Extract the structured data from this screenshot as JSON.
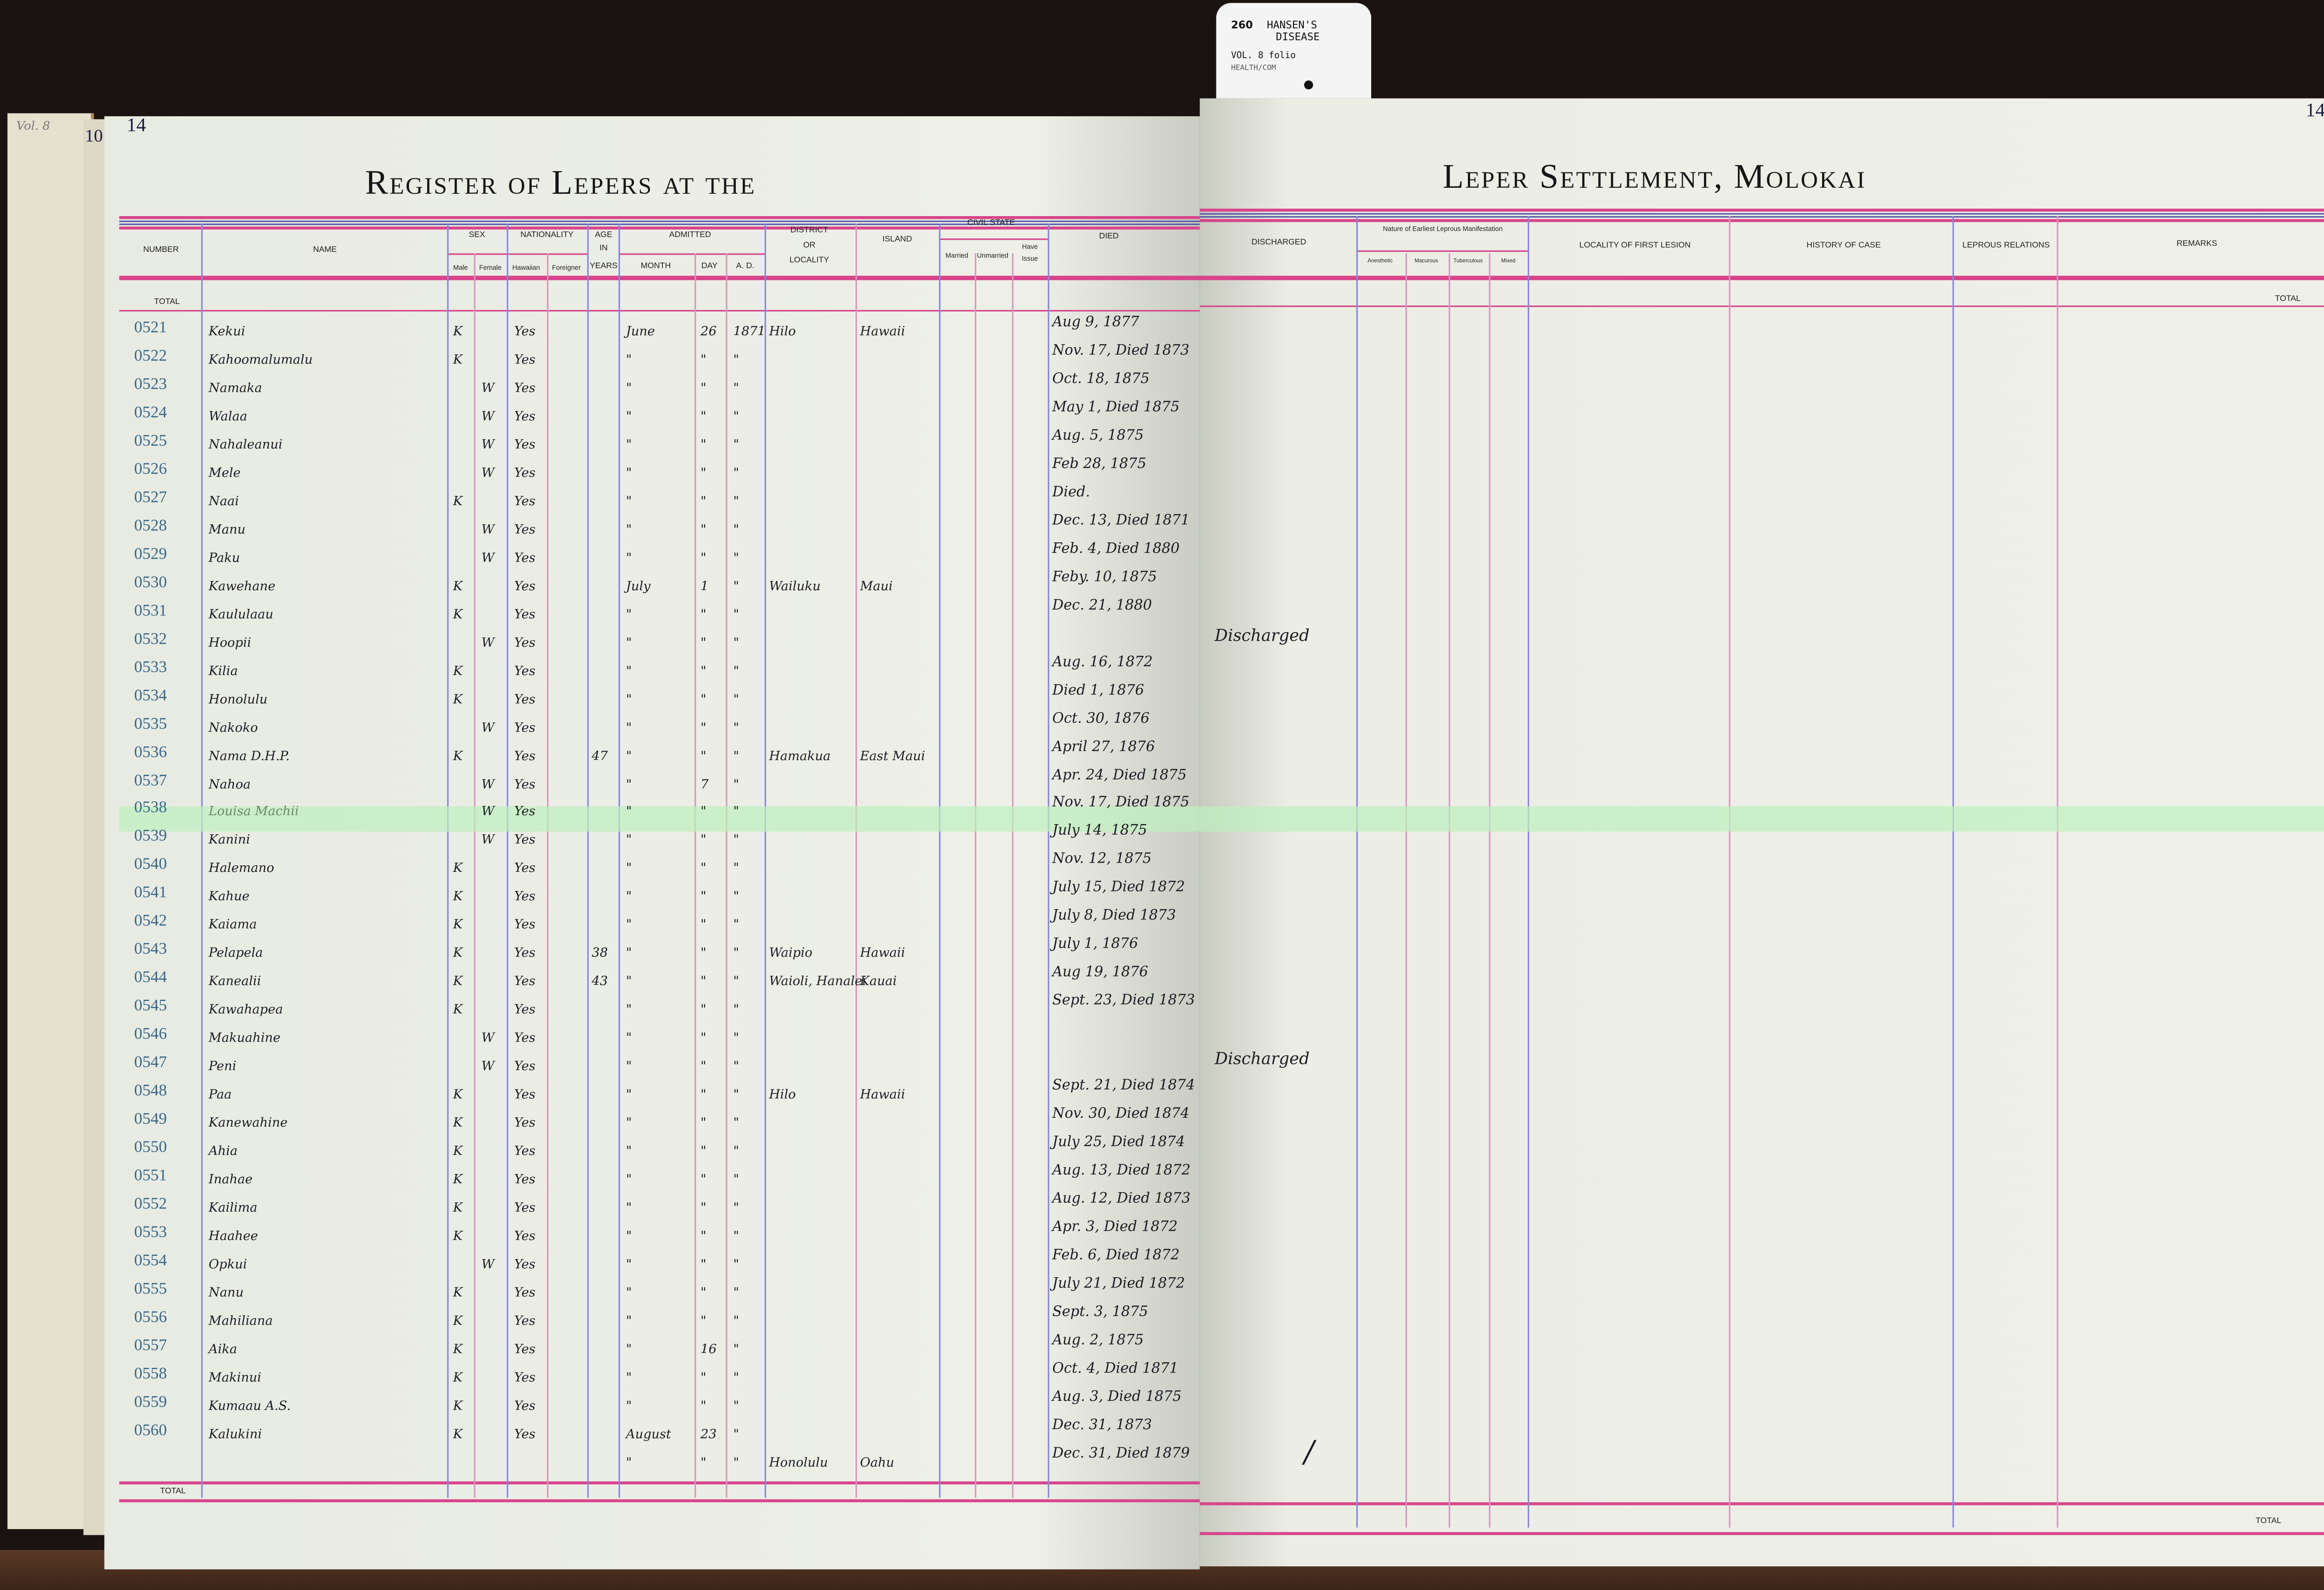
{
  "tag": {
    "number": "260",
    "line1": "HANSEN'S",
    "line2": "DISEASE",
    "line3": "VOL. 8 folio",
    "line4": "HEALTH/COM"
  },
  "margin": {
    "volume_note": "Vol. 8",
    "prev_page": "10"
  },
  "left_page": {
    "page_number": "14",
    "title": "Register of Lepers at the",
    "headers": {
      "number": "Number",
      "name": "Name",
      "sex": "Sex",
      "male": "Male",
      "female": "Female",
      "nationality": "Nationality",
      "hawaiian": "Hawaiian",
      "foreigner": "Foreigner",
      "age1": "Age",
      "age2": "in",
      "age3": "Years",
      "admitted": "Admitted",
      "month": "Month",
      "day": "Day",
      "ad": "A. D.",
      "district1": "District",
      "district2": "or",
      "district3": "Locality",
      "island": "Island",
      "civil_state": "Civil State",
      "married": "Married",
      "unmarried": "Unmarried",
      "have_issue1": "Have",
      "have_issue2": "Issue",
      "died": "Died"
    },
    "total_top": "TOTAL",
    "total_bottom": "TOTAL"
  },
  "right_page": {
    "page_number": "14",
    "title": "Leper Settlement, Molokai",
    "headers": {
      "discharged": "Discharged",
      "nature": "Nature of Earliest Leprous Manifestation",
      "anesthetic": "Anesthetic",
      "macurous": "Macurous",
      "tuberculous": "Tuberculous",
      "mixed": "Mixed",
      "locality": "Locality of First Lesion",
      "history": "History of Case",
      "relations": "Leprous Relations",
      "remarks": "Remarks"
    },
    "total_top": "TOTAL",
    "total_bottom": "TOTAL",
    "extra_mark": "/"
  },
  "colors": {
    "rule_pink": "#d8458b",
    "rule_blue": "#5b5aa6",
    "highlight": "#bef0be",
    "paper": "#eef0e8"
  },
  "highlighted_row": "0538",
  "rows": [
    {
      "number": "0521",
      "name": "Kekui",
      "male": "K",
      "female": "",
      "hawaiian": "Yes",
      "age": "",
      "month": "June",
      "day": "26",
      "ad": "1871",
      "district": "Hilo",
      "island": "Hawaii",
      "died": "Aug 9, 1877",
      "discharged": ""
    },
    {
      "number": "0522",
      "name": "Kahoomalumalu",
      "male": "K",
      "female": "",
      "hawaiian": "Yes",
      "age": "",
      "month": "\"",
      "day": "\"",
      "ad": "\"",
      "district": "",
      "island": "",
      "died": "Nov. 17, Died 1873",
      "discharged": ""
    },
    {
      "number": "0523",
      "name": "Namaka",
      "male": "",
      "female": "W",
      "hawaiian": "Yes",
      "age": "",
      "month": "\"",
      "day": "\"",
      "ad": "\"",
      "district": "",
      "island": "",
      "died": "Oct. 18, 1875",
      "discharged": ""
    },
    {
      "number": "0524",
      "name": "Walaa",
      "male": "",
      "female": "W",
      "hawaiian": "Yes",
      "age": "",
      "month": "\"",
      "day": "\"",
      "ad": "\"",
      "district": "",
      "island": "",
      "died": "May 1, Died 1875",
      "discharged": ""
    },
    {
      "number": "0525",
      "name": "Nahaleanui",
      "male": "",
      "female": "W",
      "hawaiian": "Yes",
      "age": "",
      "month": "\"",
      "day": "\"",
      "ad": "\"",
      "district": "",
      "island": "",
      "died": "Aug. 5, 1875",
      "discharged": ""
    },
    {
      "number": "0526",
      "name": "Mele",
      "male": "",
      "female": "W",
      "hawaiian": "Yes",
      "age": "",
      "month": "\"",
      "day": "\"",
      "ad": "\"",
      "district": "",
      "island": "",
      "died": "Feb 28, 1875",
      "discharged": ""
    },
    {
      "number": "0527",
      "name": "Naai",
      "male": "K",
      "female": "",
      "hawaiian": "Yes",
      "age": "",
      "month": "\"",
      "day": "\"",
      "ad": "\"",
      "district": "",
      "island": "",
      "died": "Died.",
      "discharged": ""
    },
    {
      "number": "0528",
      "name": "Manu",
      "male": "",
      "female": "W",
      "hawaiian": "Yes",
      "age": "",
      "month": "\"",
      "day": "\"",
      "ad": "\"",
      "district": "",
      "island": "",
      "died": "Dec. 13, Died 1871",
      "discharged": ""
    },
    {
      "number": "0529",
      "name": "Paku",
      "male": "",
      "female": "W",
      "hawaiian": "Yes",
      "age": "",
      "month": "\"",
      "day": "\"",
      "ad": "\"",
      "district": "",
      "island": "",
      "died": "Feb. 4, Died 1880",
      "discharged": ""
    },
    {
      "number": "0530",
      "name": "Kawehane",
      "male": "K",
      "female": "",
      "hawaiian": "Yes",
      "age": "",
      "month": "July",
      "day": "1",
      "ad": "\"",
      "district": "Wailuku",
      "island": "Maui",
      "died": "Feby. 10, 1875",
      "discharged": ""
    },
    {
      "number": "0531",
      "name": "Kaululaau",
      "male": "K",
      "female": "",
      "hawaiian": "Yes",
      "age": "",
      "month": "\"",
      "day": "\"",
      "ad": "\"",
      "district": "",
      "island": "",
      "died": "Dec. 21, 1880",
      "discharged": ""
    },
    {
      "number": "0532",
      "name": "Hoopii",
      "male": "",
      "female": "W",
      "hawaiian": "Yes",
      "age": "",
      "month": "\"",
      "day": "\"",
      "ad": "\"",
      "district": "",
      "island": "",
      "died": "",
      "discharged": "Discharged"
    },
    {
      "number": "0533",
      "name": "Kilia",
      "male": "K",
      "female": "",
      "hawaiian": "Yes",
      "age": "",
      "month": "\"",
      "day": "\"",
      "ad": "\"",
      "district": "",
      "island": "",
      "died": "Aug. 16, 1872",
      "discharged": ""
    },
    {
      "number": "0534",
      "name": "Honolulu",
      "male": "K",
      "female": "",
      "hawaiian": "Yes",
      "age": "",
      "month": "\"",
      "day": "\"",
      "ad": "\"",
      "district": "",
      "island": "",
      "died": "Died 1, 1876",
      "discharged": ""
    },
    {
      "number": "0535",
      "name": "Nakoko",
      "male": "",
      "female": "W",
      "hawaiian": "Yes",
      "age": "",
      "month": "\"",
      "day": "\"",
      "ad": "\"",
      "district": "",
      "island": "",
      "died": "Oct. 30, 1876",
      "discharged": ""
    },
    {
      "number": "0536",
      "name": "Nama D.H.P.",
      "male": "K",
      "female": "",
      "hawaiian": "Yes",
      "age": "47",
      "month": "\"",
      "day": "\"",
      "ad": "\"",
      "district": "Hamakua",
      "island": "East Maui",
      "died": "April 27, 1876",
      "discharged": ""
    },
    {
      "number": "0537",
      "name": "Nahoa",
      "male": "",
      "female": "W",
      "hawaiian": "Yes",
      "age": "",
      "month": "\"",
      "day": "7",
      "ad": "\"",
      "district": "",
      "island": "",
      "died": "Apr. 24, Died 1875",
      "discharged": ""
    },
    {
      "number": "0538",
      "name": "Louisa Machii",
      "male": "",
      "female": "W",
      "hawaiian": "Yes",
      "age": "",
      "month": "\"",
      "day": "\"",
      "ad": "\"",
      "district": "",
      "island": "",
      "died": "Nov. 17, Died 1875",
      "discharged": ""
    },
    {
      "number": "0539",
      "name": "Kanini",
      "male": "",
      "female": "W",
      "hawaiian": "Yes",
      "age": "",
      "month": "\"",
      "day": "\"",
      "ad": "\"",
      "district": "",
      "island": "",
      "died": "July 14, 1875",
      "discharged": ""
    },
    {
      "number": "0540",
      "name": "Halemano",
      "male": "K",
      "female": "",
      "hawaiian": "Yes",
      "age": "",
      "month": "\"",
      "day": "\"",
      "ad": "\"",
      "district": "",
      "island": "",
      "died": "Nov. 12, 1875",
      "discharged": ""
    },
    {
      "number": "0541",
      "name": "Kahue",
      "male": "K",
      "female": "",
      "hawaiian": "Yes",
      "age": "",
      "month": "\"",
      "day": "\"",
      "ad": "\"",
      "district": "",
      "island": "",
      "died": "July 15, Died 1872",
      "discharged": ""
    },
    {
      "number": "0542",
      "name": "Kaiama",
      "male": "K",
      "female": "",
      "hawaiian": "Yes",
      "age": "",
      "month": "\"",
      "day": "\"",
      "ad": "\"",
      "district": "",
      "island": "",
      "died": "July 8, Died 1873",
      "discharged": ""
    },
    {
      "number": "0543",
      "name": "Pelapela",
      "male": "K",
      "female": "",
      "hawaiian": "Yes",
      "age": "38",
      "month": "\"",
      "day": "\"",
      "ad": "\"",
      "district": "Waipio",
      "island": "Hawaii",
      "died": "July 1, 1876",
      "discharged": ""
    },
    {
      "number": "0544",
      "name": "Kanealii",
      "male": "K",
      "female": "",
      "hawaiian": "Yes",
      "age": "43",
      "month": "\"",
      "day": "\"",
      "ad": "\"",
      "district": "Waioli, Hanalei",
      "island": "Kauai",
      "died": "Aug 19, 1876",
      "discharged": ""
    },
    {
      "number": "0545",
      "name": "Kawahapea",
      "male": "K",
      "female": "",
      "hawaiian": "Yes",
      "age": "",
      "month": "\"",
      "day": "\"",
      "ad": "\"",
      "district": "",
      "island": "",
      "died": "Sept. 23, Died 1873",
      "discharged": ""
    },
    {
      "number": "0546",
      "name": "Makuahine",
      "male": "",
      "female": "W",
      "hawaiian": "Yes",
      "age": "",
      "month": "\"",
      "day": "\"",
      "ad": "\"",
      "district": "",
      "island": "",
      "died": "",
      "discharged": ""
    },
    {
      "number": "0547",
      "name": "Peni",
      "male": "",
      "female": "W",
      "hawaiian": "Yes",
      "age": "",
      "month": "\"",
      "day": "\"",
      "ad": "\"",
      "district": "",
      "island": "",
      "died": "",
      "discharged": "Discharged"
    },
    {
      "number": "0548",
      "name": "Paa",
      "male": "K",
      "female": "",
      "hawaiian": "Yes",
      "age": "",
      "month": "\"",
      "day": "\"",
      "ad": "\"",
      "district": "Hilo",
      "island": "Hawaii",
      "died": "Sept. 21, Died 1874",
      "discharged": ""
    },
    {
      "number": "0549",
      "name": "Kanewahine",
      "male": "K",
      "female": "",
      "hawaiian": "Yes",
      "age": "",
      "month": "\"",
      "day": "\"",
      "ad": "\"",
      "district": "",
      "island": "",
      "died": "Nov. 30, Died 1874",
      "discharged": ""
    },
    {
      "number": "0550",
      "name": "Ahia",
      "male": "K",
      "female": "",
      "hawaiian": "Yes",
      "age": "",
      "month": "\"",
      "day": "\"",
      "ad": "\"",
      "district": "",
      "island": "",
      "died": "July 25, Died 1874",
      "discharged": ""
    },
    {
      "number": "0551",
      "name": "Inahae",
      "male": "K",
      "female": "",
      "hawaiian": "Yes",
      "age": "",
      "month": "\"",
      "day": "\"",
      "ad": "\"",
      "district": "",
      "island": "",
      "died": "Aug. 13, Died 1872",
      "discharged": ""
    },
    {
      "number": "0552",
      "name": "Kailima",
      "male": "K",
      "female": "",
      "hawaiian": "Yes",
      "age": "",
      "month": "\"",
      "day": "\"",
      "ad": "\"",
      "district": "",
      "island": "",
      "died": "Aug. 12, Died 1873",
      "discharged": ""
    },
    {
      "number": "0553",
      "name": "Haahee",
      "male": "K",
      "female": "",
      "hawaiian": "Yes",
      "age": "",
      "month": "\"",
      "day": "\"",
      "ad": "\"",
      "district": "",
      "island": "",
      "died": "Apr. 3, Died 1872",
      "discharged": ""
    },
    {
      "number": "0554",
      "name": "Opkui",
      "male": "",
      "female": "W",
      "hawaiian": "Yes",
      "age": "",
      "month": "\"",
      "day": "\"",
      "ad": "\"",
      "district": "",
      "island": "",
      "died": "Feb. 6, Died 1872",
      "discharged": ""
    },
    {
      "number": "0555",
      "name": "Nanu",
      "male": "K",
      "female": "",
      "hawaiian": "Yes",
      "age": "",
      "month": "\"",
      "day": "\"",
      "ad": "\"",
      "district": "",
      "island": "",
      "died": "July 21, Died 1872",
      "discharged": ""
    },
    {
      "number": "0556",
      "name": "Mahiliana",
      "male": "K",
      "female": "",
      "hawaiian": "Yes",
      "age": "",
      "month": "\"",
      "day": "\"",
      "ad": "\"",
      "district": "",
      "island": "",
      "died": "Sept. 3, 1875",
      "discharged": ""
    },
    {
      "number": "0557",
      "name": "Aika",
      "male": "K",
      "female": "",
      "hawaiian": "Yes",
      "age": "",
      "month": "\"",
      "day": "16",
      "ad": "\"",
      "district": "",
      "island": "",
      "died": "Aug. 2, 1875",
      "discharged": ""
    },
    {
      "number": "0558",
      "name": "Makinui",
      "male": "K",
      "female": "",
      "hawaiian": "Yes",
      "age": "",
      "month": "\"",
      "day": "\"",
      "ad": "\"",
      "district": "",
      "island": "",
      "died": "Oct. 4, Died 1871",
      "discharged": ""
    },
    {
      "number": "0559",
      "name": "Kumaau A.S.",
      "male": "K",
      "female": "",
      "hawaiian": "Yes",
      "age": "",
      "month": "\"",
      "day": "\"",
      "ad": "\"",
      "district": "",
      "island": "",
      "died": "Aug. 3, Died 1875",
      "discharged": ""
    },
    {
      "number": "0560",
      "name": "Kalukini",
      "male": "K",
      "female": "",
      "hawaiian": "Yes",
      "age": "",
      "month": "August",
      "day": "23",
      "ad": "\"",
      "district": "",
      "island": "",
      "died": "Dec. 31, 1873",
      "discharged": ""
    }
  ],
  "trailing_entry": {
    "month": "\"",
    "day": "\"",
    "ad": "\"",
    "district": "Honolulu",
    "island": "Oahu",
    "died": "Dec. 31, Died 1879"
  }
}
